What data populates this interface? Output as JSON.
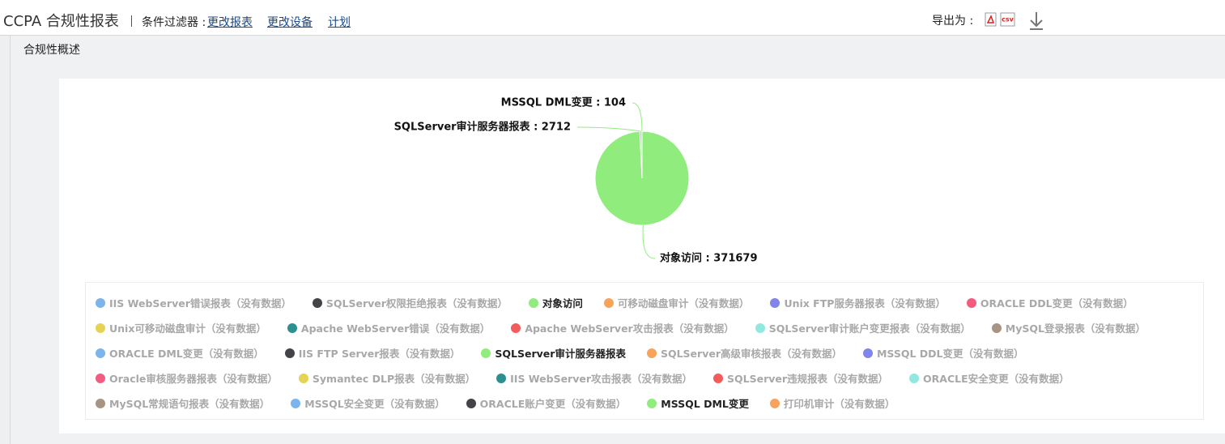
{
  "header": {
    "title": "CCPA 合规性报表",
    "filter_label": "条件过滤器 :",
    "links": [
      "更改报表",
      "更改设备",
      "计划"
    ],
    "export_label": "导出为 :",
    "csv_icon": "csv"
  },
  "section": {
    "title": "合规性概述"
  },
  "chart_data": {
    "type": "pie",
    "categories": [
      "IIS WebServer错误报表（没有数据）",
      "SQLServer权限拒绝报表（没有数据）",
      "对象访问",
      "可移动磁盘审计（没有数据）",
      "Unix FTP服务器报表（没有数据）",
      "ORACLE DDL变更（没有数据）",
      "Unix可移动磁盘审计（没有数据）",
      "Apache WebServer错误（没有数据）",
      "Apache WebServer攻击报表（没有数据）",
      "SQLServer审计账户变更报表（没有数据）",
      "MySQL登录报表（没有数据）",
      "ORACLE DML变更（没有数据）",
      "IIS FTP Server报表（没有数据）",
      "SQLServer审计服务器报表",
      "SQLServer高级审核报表（没有数据）",
      "MSSQL DDL变更（没有数据）",
      "Oracle审核服务器报表（没有数据）",
      "Symantec DLP报表（没有数据）",
      "IIS WebServer攻击报表（没有数据）",
      "SQLServer违规报表（没有数据）",
      "ORACLE安全变更（没有数据）",
      "MySQL常规语句报表（没有数据）",
      "MSSQL安全变更（没有数据）",
      "ORACLE账户变更（没有数据）",
      "MSSQL DML变更",
      "打印机审计（没有数据）"
    ],
    "values": [
      null,
      null,
      371679,
      null,
      null,
      null,
      null,
      null,
      null,
      null,
      null,
      null,
      null,
      2712,
      null,
      null,
      null,
      null,
      null,
      null,
      null,
      null,
      null,
      null,
      104,
      null
    ],
    "value_labels": [
      null,
      null,
      "对象访问 : 371679",
      null,
      null,
      null,
      null,
      null,
      null,
      null,
      null,
      null,
      null,
      "SQLServer审计服务器报表 : 2712",
      null,
      null,
      null,
      null,
      null,
      null,
      null,
      null,
      null,
      null,
      "MSSQL DML变更 : 104",
      null
    ],
    "colors": [
      "#7cb5ec",
      "#434348",
      "#90ed7d",
      "#f7a35c",
      "#8085e9",
      "#f15c80",
      "#e4d354",
      "#2b908f",
      "#f45b5b",
      "#91e8e1",
      "#a89483",
      "#7cb5ec",
      "#434348",
      "#90ed7d",
      "#f7a35c",
      "#8085e9",
      "#f15c80",
      "#e4d354",
      "#2b908f",
      "#f45b5b",
      "#91e8e1",
      "#a89483",
      "#7cb5ec",
      "#434348",
      "#90ed7d",
      "#f7a35c"
    ]
  }
}
